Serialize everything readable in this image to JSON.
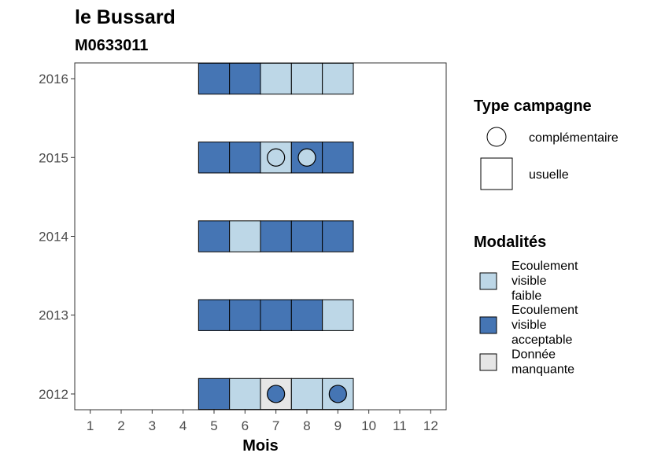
{
  "chart_data": {
    "type": "heatmap",
    "title": "le Bussard",
    "subtitle": "M0633011",
    "xlabel": "Mois",
    "ylabel": "",
    "x_ticks": [
      1,
      2,
      3,
      4,
      5,
      6,
      7,
      8,
      9,
      10,
      11,
      12
    ],
    "y_ticks": [
      2012,
      2013,
      2014,
      2015,
      2016
    ],
    "xlim": [
      0.5,
      12.5
    ],
    "ylim": [
      2011.8,
      2016.2
    ],
    "grid": false,
    "legend_position": "right",
    "modalites": [
      {
        "key": "faible",
        "label": "Ecoulement visible faible",
        "lines": [
          "Ecoulement",
          "visible",
          "faible"
        ],
        "color": "#BDD7E7"
      },
      {
        "key": "acceptable",
        "label": "Ecoulement visible acceptable",
        "lines": [
          "Ecoulement",
          "visible",
          "acceptable"
        ],
        "color": "#4575B4"
      },
      {
        "key": "manquante",
        "label": "Donnée manquante",
        "lines": [
          "Donnée",
          "manquante"
        ],
        "color": "#E6E6E6"
      }
    ],
    "type_campagne": [
      {
        "key": "complementaire",
        "label": "complémentaire",
        "shape": "circle"
      },
      {
        "key": "usuelle",
        "label": "usuelle",
        "shape": "square"
      }
    ],
    "legend_titles": {
      "type_campagne": "Type campagne",
      "modalites": "Modalités"
    },
    "cells": [
      {
        "year": 2016,
        "month": 5,
        "modalite": "acceptable",
        "type": "usuelle"
      },
      {
        "year": 2016,
        "month": 6,
        "modalite": "acceptable",
        "type": "usuelle"
      },
      {
        "year": 2016,
        "month": 7,
        "modalite": "faible",
        "type": "usuelle"
      },
      {
        "year": 2016,
        "month": 8,
        "modalite": "faible",
        "type": "usuelle"
      },
      {
        "year": 2016,
        "month": 9,
        "modalite": "faible",
        "type": "usuelle"
      },
      {
        "year": 2015,
        "month": 5,
        "modalite": "acceptable",
        "type": "usuelle"
      },
      {
        "year": 2015,
        "month": 6,
        "modalite": "acceptable",
        "type": "usuelle"
      },
      {
        "year": 2015,
        "month": 7,
        "modalite": "faible",
        "type": "usuelle"
      },
      {
        "year": 2015,
        "month": 7,
        "modalite": "faible",
        "type": "complementaire"
      },
      {
        "year": 2015,
        "month": 8,
        "modalite": "acceptable",
        "type": "usuelle"
      },
      {
        "year": 2015,
        "month": 8,
        "modalite": "faible",
        "type": "complementaire"
      },
      {
        "year": 2015,
        "month": 9,
        "modalite": "acceptable",
        "type": "usuelle"
      },
      {
        "year": 2014,
        "month": 5,
        "modalite": "acceptable",
        "type": "usuelle"
      },
      {
        "year": 2014,
        "month": 6,
        "modalite": "faible",
        "type": "usuelle"
      },
      {
        "year": 2014,
        "month": 7,
        "modalite": "acceptable",
        "type": "usuelle"
      },
      {
        "year": 2014,
        "month": 8,
        "modalite": "acceptable",
        "type": "usuelle"
      },
      {
        "year": 2014,
        "month": 9,
        "modalite": "acceptable",
        "type": "usuelle"
      },
      {
        "year": 2013,
        "month": 5,
        "modalite": "acceptable",
        "type": "usuelle"
      },
      {
        "year": 2013,
        "month": 6,
        "modalite": "acceptable",
        "type": "usuelle"
      },
      {
        "year": 2013,
        "month": 7,
        "modalite": "acceptable",
        "type": "usuelle"
      },
      {
        "year": 2013,
        "month": 8,
        "modalite": "acceptable",
        "type": "usuelle"
      },
      {
        "year": 2013,
        "month": 9,
        "modalite": "faible",
        "type": "usuelle"
      },
      {
        "year": 2012,
        "month": 5,
        "modalite": "acceptable",
        "type": "usuelle"
      },
      {
        "year": 2012,
        "month": 6,
        "modalite": "faible",
        "type": "usuelle"
      },
      {
        "year": 2012,
        "month": 7,
        "modalite": "manquante",
        "type": "usuelle"
      },
      {
        "year": 2012,
        "month": 7,
        "modalite": "acceptable",
        "type": "complementaire"
      },
      {
        "year": 2012,
        "month": 8,
        "modalite": "faible",
        "type": "usuelle"
      },
      {
        "year": 2012,
        "month": 9,
        "modalite": "faible",
        "type": "usuelle"
      },
      {
        "year": 2012,
        "month": 9,
        "modalite": "acceptable",
        "type": "complementaire"
      }
    ]
  }
}
